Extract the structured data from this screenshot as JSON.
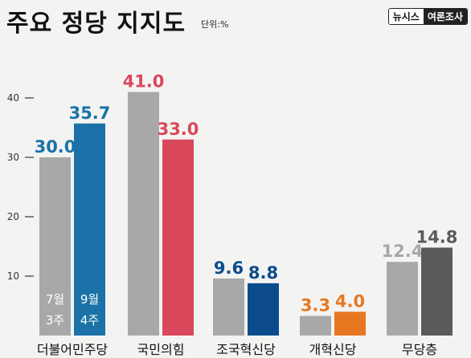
{
  "header": {
    "title": "주요 정당 지지도",
    "unit": "단위:%",
    "brand_left": "뉴시스",
    "brand_right": "여론조사"
  },
  "chart_data": {
    "type": "bar",
    "title": "주요 정당 지지도",
    "unit": "단위:%",
    "xlabel": "",
    "ylabel": "",
    "ylim": [
      0,
      45
    ],
    "yticks": [
      10,
      20,
      30,
      40
    ],
    "categories": [
      "더불어민주당",
      "국민의힘",
      "조국혁신당",
      "개혁신당",
      "무당층"
    ],
    "series": [
      {
        "name": "7월 3주",
        "values": [
          30.0,
          41.0,
          9.6,
          3.3,
          12.4
        ]
      },
      {
        "name": "9월 4주",
        "values": [
          35.7,
          33.0,
          8.8,
          4.0,
          14.8
        ]
      }
    ],
    "legend_labels": [
      {
        "line1": "7월",
        "line2": "3주"
      },
      {
        "line1": "9월",
        "line2": "4주"
      }
    ],
    "colors": {
      "prev": "#a8a8a8",
      "current": [
        "#1a72a8",
        "#d9485a",
        "#0d4c8c",
        "#e87722",
        "#5a5a5c"
      ],
      "value_prev": [
        "#1a72a8",
        "#d9485a",
        "#0d4c8c",
        "#e87722",
        "#a8a8a8"
      ],
      "value_current": [
        "#1a72a8",
        "#d9485a",
        "#0d4c8c",
        "#e87722",
        "#5a5a5c"
      ]
    }
  }
}
